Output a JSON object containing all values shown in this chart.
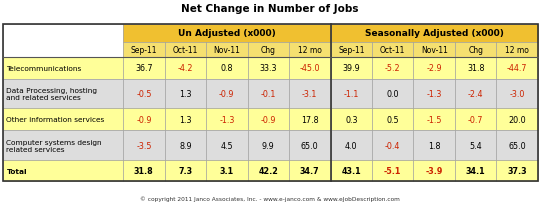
{
  "title": "Net Change in Number of Jobs",
  "copyright": "© copyright 2011 Janco Associates, Inc. - www.e-janco.com & www.eJobDescription.com",
  "col_labels": [
    "Sep-11",
    "Oct-11",
    "Nov-11",
    "Chg",
    "12 mo",
    "Sep-11",
    "Oct-11",
    "Nov-11",
    "Chg",
    "12 mo"
  ],
  "rows": [
    {
      "label": "Telecommunications",
      "unadj": [
        "36.7",
        "-4.2",
        "0.8",
        "33.3",
        "-45.0"
      ],
      "sadj": [
        "39.9",
        "-5.2",
        "-2.9",
        "31.8",
        "-44.7"
      ],
      "bg": "#FFFF99",
      "bold": false,
      "tall": false
    },
    {
      "label": "Data Processing, hosting\nand related services",
      "unadj": [
        "-0.5",
        "1.3",
        "-0.9",
        "-0.1",
        "-3.1"
      ],
      "sadj": [
        "-1.1",
        "0.0",
        "-1.3",
        "-2.4",
        "-3.0"
      ],
      "bg": "#DDDDDD",
      "bold": false,
      "tall": true
    },
    {
      "label": "Other information services",
      "unadj": [
        "-0.9",
        "1.3",
        "-1.3",
        "-0.9",
        "17.8"
      ],
      "sadj": [
        "0.3",
        "0.5",
        "-1.5",
        "-0.7",
        "20.0"
      ],
      "bg": "#FFFF99",
      "bold": false,
      "tall": false
    },
    {
      "label": "Computer systems design\nrelated services",
      "unadj": [
        "-3.5",
        "8.9",
        "4.5",
        "9.9",
        "65.0"
      ],
      "sadj": [
        "4.0",
        "-0.4",
        "1.8",
        "5.4",
        "65.0"
      ],
      "bg": "#DDDDDD",
      "bold": false,
      "tall": true
    },
    {
      "label": "Total",
      "unadj": [
        "31.8",
        "7.3",
        "3.1",
        "42.2",
        "34.7"
      ],
      "sadj": [
        "43.1",
        "-5.1",
        "-3.9",
        "34.1",
        "37.3"
      ],
      "bg": "#FFFF99",
      "bold": true,
      "tall": false
    }
  ],
  "header_bg": "#F0C030",
  "header_sub_bg": "#F5E070",
  "neg_color": "#CC2200",
  "pos_color": "#000000",
  "white_bg": "#FFFFFF",
  "edge_color": "#999999",
  "thick_edge": "#555555"
}
